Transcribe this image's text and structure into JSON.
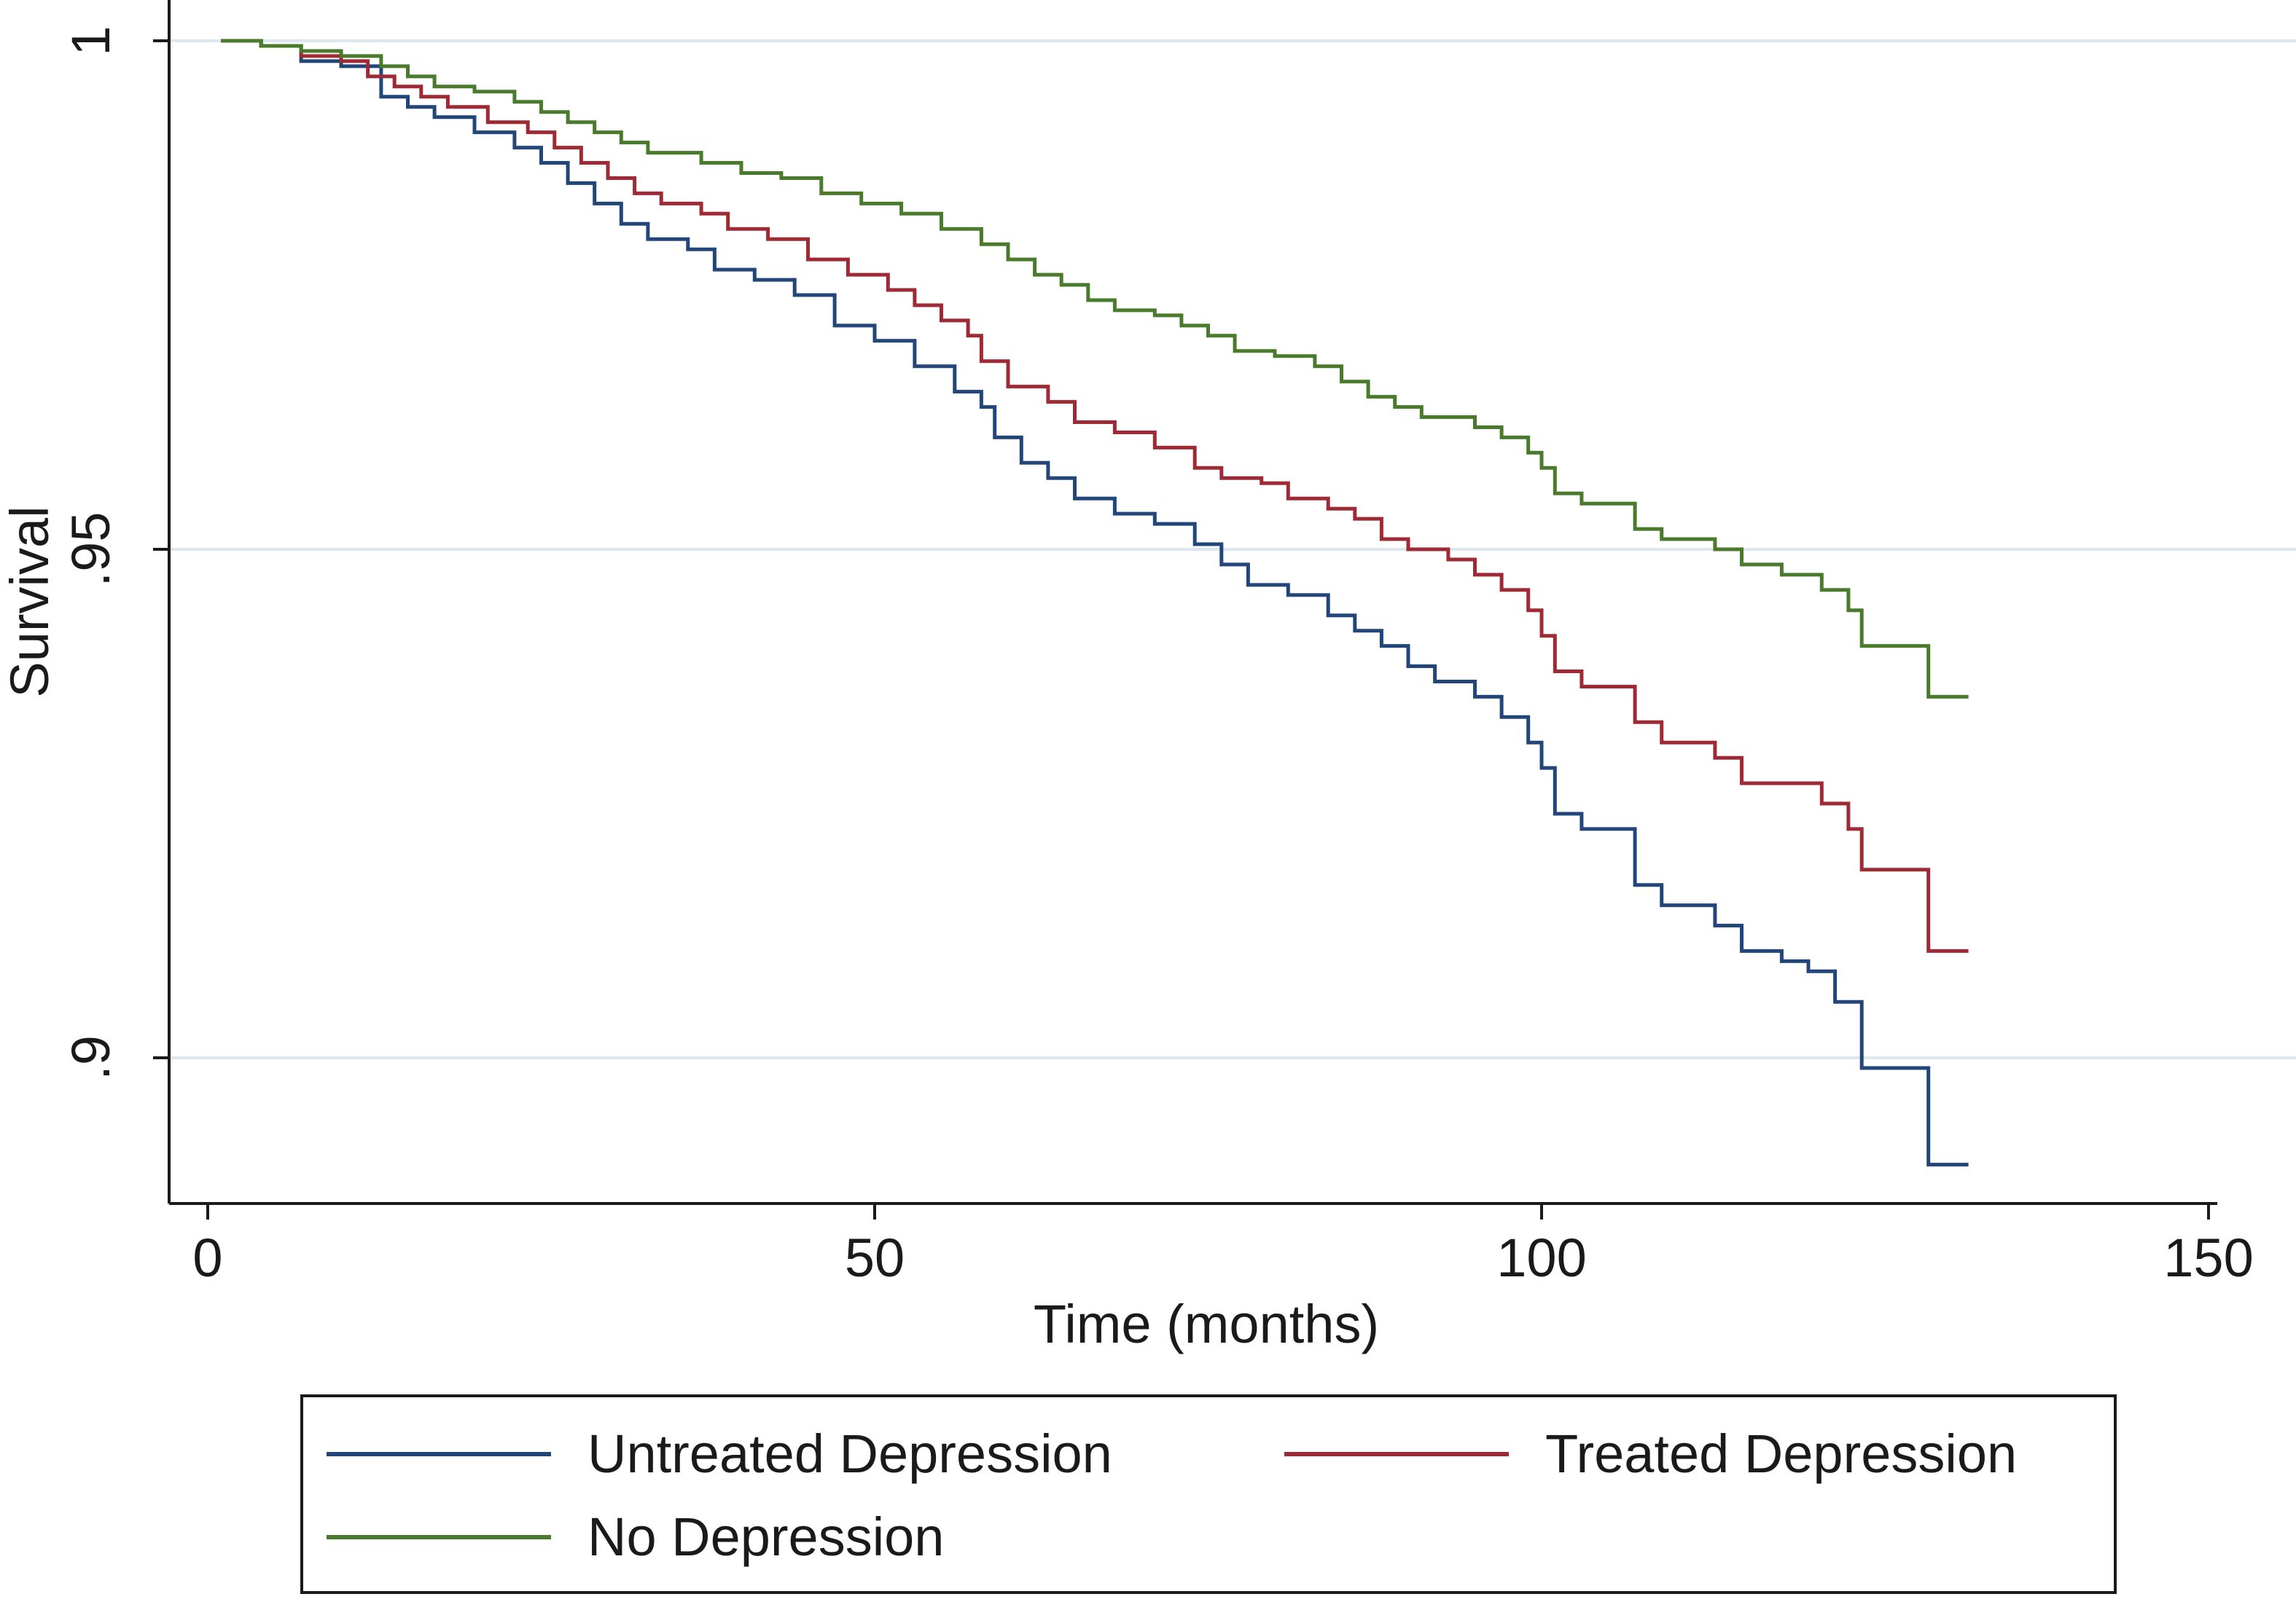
{
  "chart_data": {
    "type": "line",
    "subtype": "kaplan-meier-step",
    "title": "",
    "xlabel": "Time (months)",
    "ylabel": "Survival",
    "xlim": [
      0,
      150
    ],
    "ylim": [
      0.887,
      1.0
    ],
    "xticks": [
      0,
      50,
      100,
      150
    ],
    "xtick_labels": [
      "0",
      "50",
      "100",
      "150"
    ],
    "yticks": [
      0.9,
      0.95,
      1.0
    ],
    "ytick_labels": [
      ".9",
      ".95",
      "1"
    ],
    "grid": "horizontal",
    "legend": "bottom",
    "series": [
      {
        "name": "Untreated Depression",
        "color": "#22457a",
        "points": [
          [
            1,
            1.0
          ],
          [
            4,
            0.9995
          ],
          [
            7,
            0.998
          ],
          [
            10,
            0.9975
          ],
          [
            13,
            0.9945
          ],
          [
            15,
            0.9935
          ],
          [
            17,
            0.9925
          ],
          [
            20,
            0.991
          ],
          [
            23,
            0.9895
          ],
          [
            25,
            0.988
          ],
          [
            27,
            0.986
          ],
          [
            29,
            0.984
          ],
          [
            31,
            0.982
          ],
          [
            33,
            0.9805
          ],
          [
            36,
            0.9795
          ],
          [
            38,
            0.9775
          ],
          [
            41,
            0.9765
          ],
          [
            44,
            0.975
          ],
          [
            47,
            0.972
          ],
          [
            50,
            0.9705
          ],
          [
            53,
            0.968
          ],
          [
            56,
            0.9655
          ],
          [
            58,
            0.964
          ],
          [
            59,
            0.961
          ],
          [
            61,
            0.9585
          ],
          [
            63,
            0.957
          ],
          [
            65,
            0.955
          ],
          [
            68,
            0.9535
          ],
          [
            71,
            0.9525
          ],
          [
            74,
            0.9505
          ],
          [
            76,
            0.9485
          ],
          [
            78,
            0.9465
          ],
          [
            81,
            0.9455
          ],
          [
            84,
            0.9435
          ],
          [
            86,
            0.942
          ],
          [
            88,
            0.9405
          ],
          [
            90,
            0.9385
          ],
          [
            92,
            0.937
          ],
          [
            95,
            0.9355
          ],
          [
            97,
            0.9335
          ],
          [
            99,
            0.931
          ],
          [
            100,
            0.9285
          ],
          [
            101,
            0.924
          ],
          [
            103,
            0.9225
          ],
          [
            107,
            0.917
          ],
          [
            109,
            0.915
          ],
          [
            113,
            0.913
          ],
          [
            115,
            0.9105
          ],
          [
            118,
            0.9095
          ],
          [
            120,
            0.9085
          ],
          [
            122,
            0.9055
          ],
          [
            124,
            0.899
          ],
          [
            129,
            0.8895
          ],
          [
            132,
            0.8895
          ]
        ]
      },
      {
        "name": "Treated Depression",
        "color": "#9e2a35",
        "points": [
          [
            1,
            1.0
          ],
          [
            4,
            0.9995
          ],
          [
            7,
            0.9985
          ],
          [
            10,
            0.998
          ],
          [
            12,
            0.9965
          ],
          [
            14,
            0.9955
          ],
          [
            16,
            0.9945
          ],
          [
            18,
            0.9935
          ],
          [
            21,
            0.992
          ],
          [
            24,
            0.991
          ],
          [
            26,
            0.9895
          ],
          [
            28,
            0.988
          ],
          [
            30,
            0.9865
          ],
          [
            32,
            0.985
          ],
          [
            34,
            0.984
          ],
          [
            37,
            0.983
          ],
          [
            39,
            0.9815
          ],
          [
            42,
            0.9805
          ],
          [
            45,
            0.9785
          ],
          [
            48,
            0.977
          ],
          [
            51,
            0.9755
          ],
          [
            53,
            0.974
          ],
          [
            55,
            0.9725
          ],
          [
            57,
            0.971
          ],
          [
            58,
            0.9685
          ],
          [
            60,
            0.966
          ],
          [
            63,
            0.9645
          ],
          [
            65,
            0.9625
          ],
          [
            68,
            0.9615
          ],
          [
            71,
            0.96
          ],
          [
            74,
            0.958
          ],
          [
            76,
            0.957
          ],
          [
            79,
            0.9565
          ],
          [
            81,
            0.955
          ],
          [
            84,
            0.954
          ],
          [
            86,
            0.953
          ],
          [
            88,
            0.951
          ],
          [
            90,
            0.95
          ],
          [
            93,
            0.949
          ],
          [
            95,
            0.9475
          ],
          [
            97,
            0.946
          ],
          [
            99,
            0.944
          ],
          [
            100,
            0.9415
          ],
          [
            101,
            0.938
          ],
          [
            103,
            0.9365
          ],
          [
            107,
            0.933
          ],
          [
            109,
            0.931
          ],
          [
            113,
            0.9295
          ],
          [
            115,
            0.927
          ],
          [
            118,
            0.927
          ],
          [
            121,
            0.925
          ],
          [
            123,
            0.9225
          ],
          [
            124,
            0.9185
          ],
          [
            129,
            0.9105
          ],
          [
            132,
            0.9105
          ]
        ]
      },
      {
        "name": "No Depression",
        "color": "#4a7a2b",
        "points": [
          [
            1,
            1.0
          ],
          [
            4,
            0.9995
          ],
          [
            7,
            0.999
          ],
          [
            10,
            0.9985
          ],
          [
            13,
            0.9975
          ],
          [
            15,
            0.9965
          ],
          [
            17,
            0.9955
          ],
          [
            20,
            0.995
          ],
          [
            23,
            0.994
          ],
          [
            25,
            0.993
          ],
          [
            27,
            0.992
          ],
          [
            29,
            0.991
          ],
          [
            31,
            0.99
          ],
          [
            33,
            0.989
          ],
          [
            37,
            0.988
          ],
          [
            40,
            0.987
          ],
          [
            43,
            0.9865
          ],
          [
            46,
            0.985
          ],
          [
            49,
            0.984
          ],
          [
            52,
            0.983
          ],
          [
            55,
            0.9815
          ],
          [
            58,
            0.98
          ],
          [
            60,
            0.9785
          ],
          [
            62,
            0.977
          ],
          [
            64,
            0.976
          ],
          [
            66,
            0.9745
          ],
          [
            68,
            0.9735
          ],
          [
            71,
            0.973
          ],
          [
            73,
            0.972
          ],
          [
            75,
            0.971
          ],
          [
            77,
            0.9695
          ],
          [
            80,
            0.969
          ],
          [
            83,
            0.968
          ],
          [
            85,
            0.9665
          ],
          [
            87,
            0.965
          ],
          [
            89,
            0.964
          ],
          [
            91,
            0.963
          ],
          [
            95,
            0.962
          ],
          [
            97,
            0.961
          ],
          [
            99,
            0.9595
          ],
          [
            100,
            0.958
          ],
          [
            101,
            0.9555
          ],
          [
            103,
            0.9545
          ],
          [
            107,
            0.952
          ],
          [
            109,
            0.951
          ],
          [
            113,
            0.95
          ],
          [
            115,
            0.9485
          ],
          [
            118,
            0.9475
          ],
          [
            121,
            0.946
          ],
          [
            123,
            0.944
          ],
          [
            124,
            0.9405
          ],
          [
            129,
            0.9355
          ],
          [
            132,
            0.9355
          ]
        ]
      }
    ]
  }
}
